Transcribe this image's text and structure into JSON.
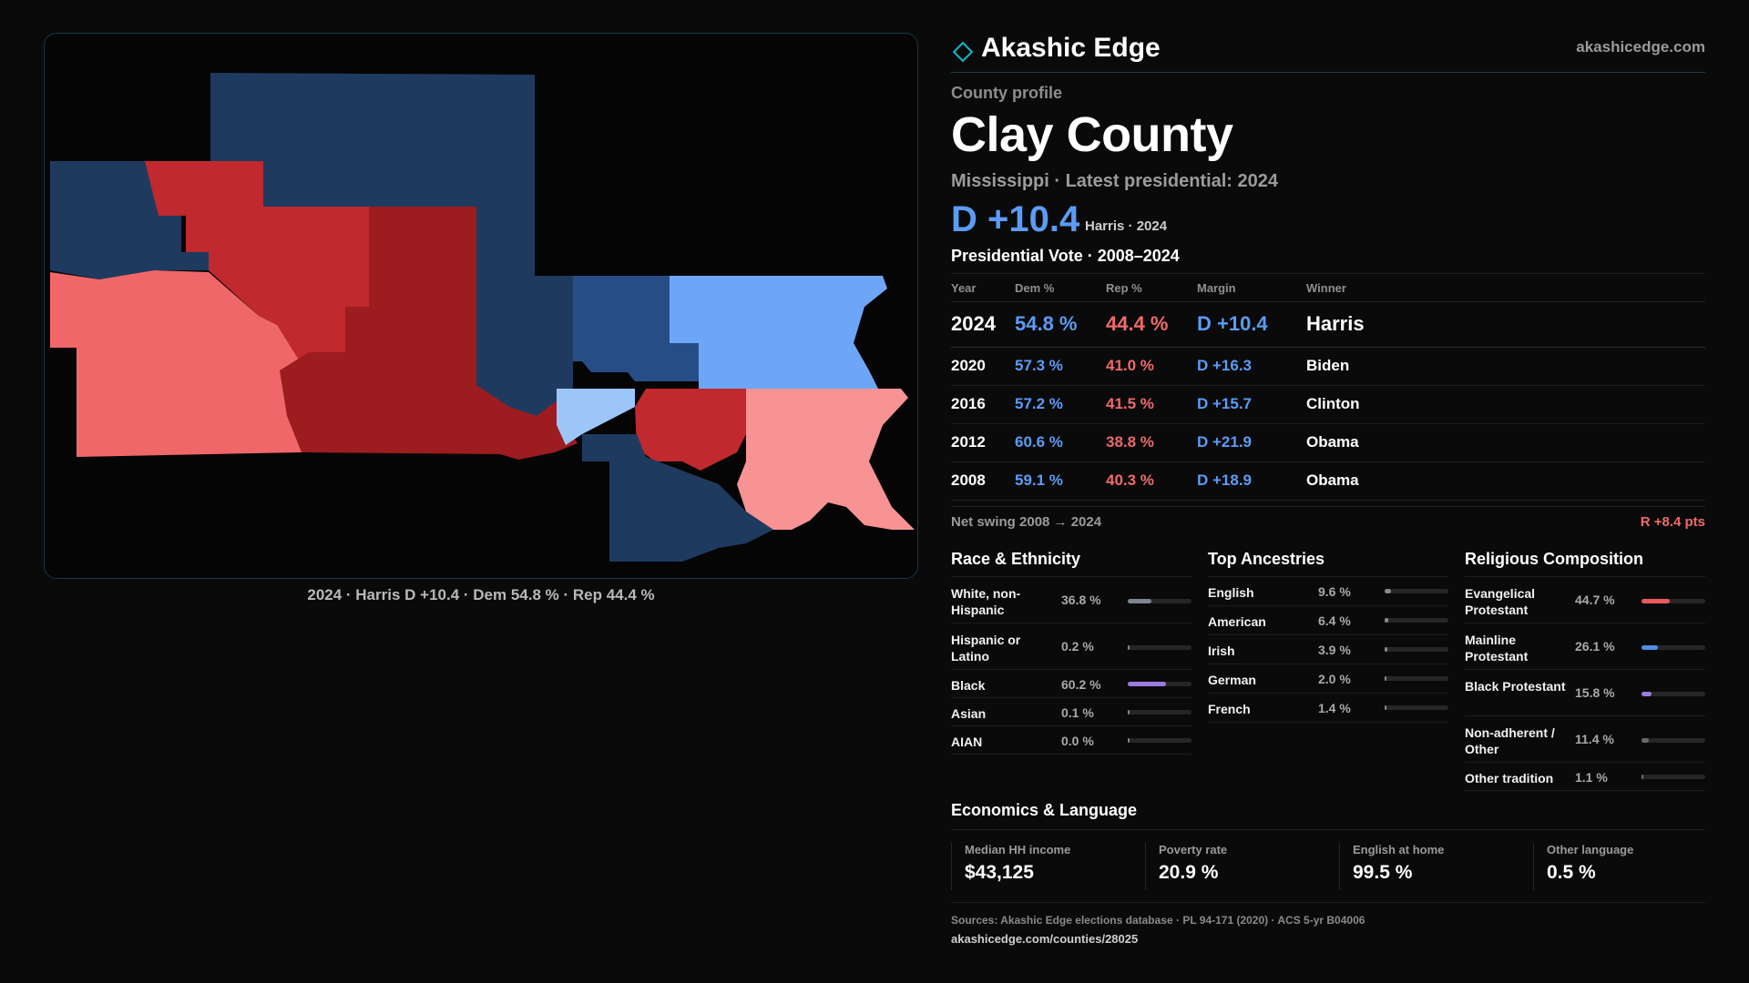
{
  "brand": {
    "name": "Akashic Edge",
    "url": "akashicedge.com",
    "accent": "#0fb9c6"
  },
  "profile": {
    "eyebrow": "County profile",
    "title": "Clay County",
    "subtitle": "Mississippi · Latest presidential: 2024",
    "headline_margin": "D +10.4",
    "headline_note": "Harris · 2024"
  },
  "map": {
    "caption": "2024 · Harris D +10.4 · Dem 54.8 % · Rep 44.4 %",
    "colors": {
      "dem_dark": "#1f3a5f",
      "dem_mid": "#274d86",
      "dem_light": "#6ea6f7",
      "dem_pale": "#9cc6f8",
      "rep_dark": "#9c1c20",
      "rep_mid": "#c0292d",
      "rep_light": "#f0676a",
      "rep_pale": "#f79393"
    }
  },
  "votes": {
    "title": "Presidential Vote · 2008–2024",
    "headers": [
      "Year",
      "Dem %",
      "Rep %",
      "Margin",
      "Winner"
    ],
    "rows": [
      {
        "year": "2024",
        "dem": "54.8 %",
        "rep": "44.4 %",
        "margin": "D +10.4",
        "winner": "Harris"
      },
      {
        "year": "2020",
        "dem": "57.3 %",
        "rep": "41.0 %",
        "margin": "D +16.3",
        "winner": "Biden"
      },
      {
        "year": "2016",
        "dem": "57.2 %",
        "rep": "41.5 %",
        "margin": "D +15.7",
        "winner": "Clinton"
      },
      {
        "year": "2012",
        "dem": "60.6 %",
        "rep": "38.8 %",
        "margin": "D +21.9",
        "winner": "Obama"
      },
      {
        "year": "2008",
        "dem": "59.1 %",
        "rep": "40.3 %",
        "margin": "D +18.9",
        "winner": "Obama"
      }
    ],
    "swing_label": "Net swing 2008 → 2024",
    "swing_value": "R +8.4 pts"
  },
  "race": {
    "title": "Race & Ethnicity",
    "items": [
      {
        "name": "White, non-Hispanic",
        "pct": "36.8 %",
        "value": 36.8,
        "color": "#7d8591"
      },
      {
        "name": "Hispanic or Latino",
        "pct": "0.2 %",
        "value": 0.2,
        "color": "#7d8591"
      },
      {
        "name": "Black",
        "pct": "60.2 %",
        "value": 60.2,
        "color": "#9b7be0"
      },
      {
        "name": "Asian",
        "pct": "0.1 %",
        "value": 0.1,
        "color": "#7d8591"
      },
      {
        "name": "AIAN",
        "pct": "0.0 %",
        "value": 0.0,
        "color": "#7d8591"
      }
    ]
  },
  "ancestry": {
    "title": "Top Ancestries",
    "items": [
      {
        "name": "English",
        "pct": "9.6 %",
        "value": 9.6,
        "color": "#8a8a8a"
      },
      {
        "name": "American",
        "pct": "6.4 %",
        "value": 6.4,
        "color": "#8a8a8a"
      },
      {
        "name": "Irish",
        "pct": "3.9 %",
        "value": 3.9,
        "color": "#8a8a8a"
      },
      {
        "name": "German",
        "pct": "2.0 %",
        "value": 2.0,
        "color": "#8a8a8a"
      },
      {
        "name": "French",
        "pct": "1.4 %",
        "value": 1.4,
        "color": "#8a8a8a"
      }
    ]
  },
  "religion": {
    "title": "Religious Composition",
    "items": [
      {
        "name": "Evangelical Protestant",
        "pct": "44.7 %",
        "value": 44.7,
        "color": "#e85a5e"
      },
      {
        "name": "Mainline Protestant",
        "pct": "26.1 %",
        "value": 26.1,
        "color": "#4f8ee6"
      },
      {
        "name": "Black Protestant",
        "pct": "15.8 %",
        "value": 15.8,
        "color": "#9b7be0"
      },
      {
        "name": "Non-adherent / Other",
        "pct": "11.4 %",
        "value": 11.4,
        "color": "#6b6b6b"
      },
      {
        "name": "Other tradition",
        "pct": "1.1 %",
        "value": 1.1,
        "color": "#6b6b6b"
      }
    ]
  },
  "econ": {
    "title": "Economics & Language",
    "cells": [
      {
        "label": "Median HH income",
        "value": "$43,125"
      },
      {
        "label": "Poverty rate",
        "value": "20.9 %"
      },
      {
        "label": "English at home",
        "value": "99.5 %"
      },
      {
        "label": "Other language",
        "value": "0.5 %"
      }
    ]
  },
  "footer": {
    "sources": "Sources: Akashic Edge elections database · PL 94-171 (2020) · ACS 5-yr B04006",
    "link": "akashicedge.com/counties/28025"
  }
}
